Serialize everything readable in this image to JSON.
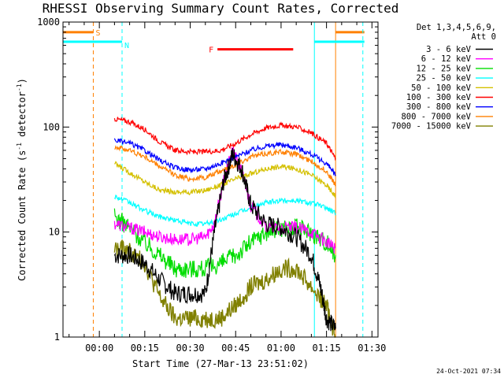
{
  "chart_data": {
    "type": "line",
    "title": "RHESSI Observing Summary Count Rates, Corrected",
    "xlabel": "Start Time (27-Mar-13 23:51:02)",
    "ylabel": "Corrected Count Rate (s⁻¹ detector⁻¹)",
    "ylabel_parts": {
      "main": "Corrected Count Rate (s",
      "exp1": "-1",
      "mid": " detector",
      "exp2": "-1",
      "end": ")"
    },
    "x_unit": "minutes after 00:00 label origin",
    "xlim": [
      -12,
      92
    ],
    "ylim": [
      1,
      1000
    ],
    "y_scale": "log",
    "x_ticks": [
      {
        "value": 0,
        "label": "00:00"
      },
      {
        "value": 15,
        "label": "00:15"
      },
      {
        "value": 30,
        "label": "00:30"
      },
      {
        "value": 45,
        "label": "00:45"
      },
      {
        "value": 60,
        "label": "01:00"
      },
      {
        "value": 75,
        "label": "01:15"
      },
      {
        "value": 90,
        "label": "01:30"
      }
    ],
    "y_ticks": [
      {
        "value": 1,
        "label": "1"
      },
      {
        "value": 10,
        "label": "10"
      },
      {
        "value": 100,
        "label": "100"
      },
      {
        "value": 1000,
        "label": "1000"
      }
    ],
    "legend": {
      "placement": "right",
      "header": [
        "Det 1,3,4,5,6,9,",
        "Att 0"
      ]
    },
    "series": [
      {
        "name": "3 - 6 keV",
        "color": "#000000",
        "x": [
          5,
          10,
          15,
          20,
          25,
          30,
          35,
          38,
          41,
          44,
          47,
          50,
          55,
          60,
          65,
          70,
          73,
          75,
          78
        ],
        "y": [
          6,
          6,
          5,
          3.5,
          2.6,
          2.6,
          2.6,
          10,
          30,
          55,
          40,
          18,
          12,
          11,
          9,
          6,
          3,
          1.5,
          1.2
        ]
      },
      {
        "name": "6 - 12 keV",
        "color": "#ff00ff",
        "x": [
          5,
          10,
          15,
          20,
          25,
          30,
          35,
          38,
          41,
          44,
          47,
          50,
          55,
          60,
          65,
          70,
          75,
          78
        ],
        "y": [
          12,
          11,
          10,
          9,
          8.5,
          8.5,
          9,
          12,
          30,
          60,
          38,
          18,
          11,
          11,
          11,
          10,
          8,
          7
        ]
      },
      {
        "name": "12 - 25 keV",
        "color": "#00dd00",
        "x": [
          5,
          10,
          15,
          20,
          25,
          30,
          35,
          40,
          45,
          50,
          55,
          60,
          65,
          70,
          75,
          78
        ],
        "y": [
          14,
          11,
          8,
          6,
          4.5,
          4.5,
          4.5,
          5,
          6,
          8,
          10,
          11,
          11,
          10,
          8,
          6
        ]
      },
      {
        "name": "25 - 50 keV",
        "color": "#00ffff",
        "x": [
          5,
          10,
          15,
          20,
          25,
          30,
          35,
          40,
          45,
          50,
          55,
          60,
          65,
          70,
          75,
          78
        ],
        "y": [
          22,
          19,
          16,
          14,
          13,
          12,
          12,
          13,
          15,
          17,
          19,
          20,
          20,
          19,
          17,
          15
        ]
      },
      {
        "name": "50 - 100 keV",
        "color": "#d4c000",
        "x": [
          5,
          10,
          15,
          20,
          25,
          30,
          35,
          40,
          45,
          50,
          55,
          60,
          65,
          70,
          75,
          78
        ],
        "y": [
          45,
          37,
          30,
          25,
          24,
          24,
          25,
          28,
          32,
          36,
          40,
          42,
          40,
          35,
          28,
          22
        ]
      },
      {
        "name": "100 - 300 keV",
        "color": "#ff0000",
        "x": [
          5,
          10,
          15,
          20,
          25,
          30,
          35,
          40,
          45,
          50,
          55,
          60,
          65,
          70,
          75,
          78
        ],
        "y": [
          120,
          112,
          95,
          72,
          60,
          58,
          58,
          60,
          70,
          85,
          98,
          104,
          100,
          88,
          70,
          50
        ]
      },
      {
        "name": "300 - 800 keV",
        "color": "#0000ff",
        "x": [
          5,
          10,
          15,
          20,
          25,
          30,
          35,
          40,
          45,
          50,
          55,
          60,
          65,
          70,
          75,
          78
        ],
        "y": [
          75,
          70,
          60,
          48,
          41,
          39,
          40,
          45,
          52,
          60,
          66,
          68,
          64,
          55,
          45,
          35
        ]
      },
      {
        "name": "800 - 7000 keV",
        "color": "#ff8000",
        "x": [
          5,
          10,
          15,
          20,
          25,
          30,
          35,
          40,
          45,
          50,
          55,
          60,
          65,
          70,
          75,
          78
        ],
        "y": [
          65,
          60,
          52,
          42,
          35,
          32,
          33,
          38,
          44,
          52,
          56,
          58,
          55,
          47,
          38,
          28
        ]
      },
      {
        "name": "7000 - 15000 keV",
        "color": "#808000",
        "x": [
          5,
          10,
          15,
          20,
          25,
          30,
          35,
          40,
          45,
          50,
          55,
          60,
          65,
          70,
          75,
          78
        ],
        "y": [
          7,
          6.5,
          5,
          2.4,
          1.5,
          1.5,
          1.5,
          1.5,
          2,
          3,
          3.5,
          4.5,
          4.5,
          3,
          2,
          1
        ]
      }
    ],
    "markers": [
      {
        "label": "S",
        "color": "#ff8000",
        "x_lines": [
          -2,
          78
        ],
        "bar_x": [
          -12,
          -2
        ],
        "bar_y": 800
      },
      {
        "label": "N",
        "color": "#00ffff",
        "x_lines": [
          -12,
          7.5,
          71,
          87
        ],
        "bar_x": [
          -12,
          7.5
        ],
        "bar_y": 650
      },
      {
        "label": "F",
        "color": "#ff0000",
        "x_lines": [],
        "bar_x": [
          39,
          64
        ],
        "bar_y": 550
      }
    ]
  },
  "footer": {
    "timestamp": "24-Oct-2021 07:34"
  }
}
